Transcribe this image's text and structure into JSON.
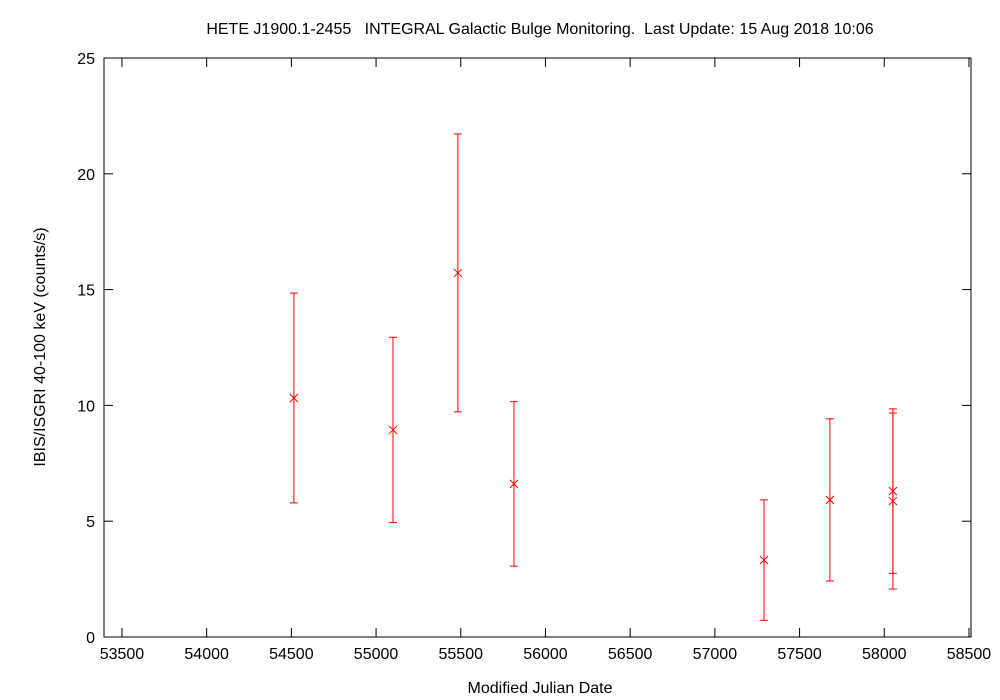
{
  "chart_data": {
    "type": "scatter",
    "title": "HETE J1900.1-2455   INTEGRAL Galactic Bulge Monitoring.  Last Update: 15 Aug 2018 10:06",
    "x_label": "Modified Julian Date",
    "y_label": "IBIS/ISGRI 40-100 keV (counts/s)",
    "color": "#ff0000",
    "x": [
      54515,
      55100,
      55483,
      55814,
      57290,
      57679,
      58051,
      58051
    ],
    "values": [
      10.32,
      8.94,
      15.72,
      6.61,
      3.32,
      5.92,
      6.3,
      5.87
    ],
    "errors": [
      4.53,
      4.0,
      6.0,
      3.55,
      2.6,
      3.5,
      3.55,
      3.8
    ],
    "xlim": [
      53394,
      58512
    ],
    "ylim": [
      0,
      25
    ],
    "xticks": [
      53500,
      54000,
      54500,
      55000,
      55500,
      56000,
      56500,
      57000,
      57500,
      58000,
      58500
    ],
    "yticks": [
      0,
      5,
      10,
      15,
      20,
      25
    ],
    "grid": false
  }
}
